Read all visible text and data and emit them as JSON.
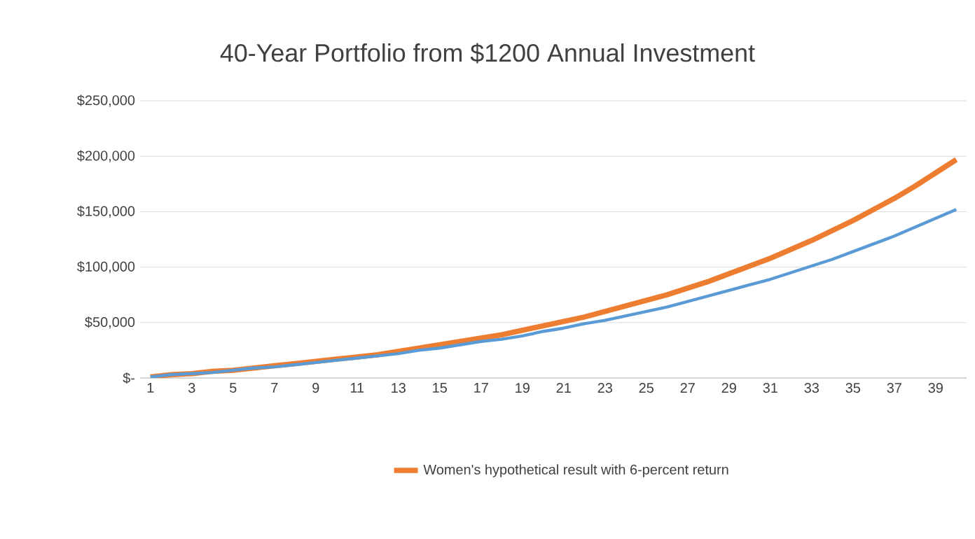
{
  "chart_data": {
    "type": "line",
    "title": "40-Year Portfolio from $1200 Annual Investment",
    "categories": [
      "1",
      null,
      "3",
      null,
      "5",
      null,
      "7",
      null,
      "9",
      null,
      "11",
      null,
      "13",
      null,
      "15",
      null,
      "17",
      null,
      "19",
      null,
      "21",
      null,
      "23",
      null,
      "25",
      null,
      "27",
      null,
      "29",
      null,
      "31",
      null,
      "33",
      null,
      "35",
      null,
      "37",
      null,
      "39",
      null
    ],
    "series": [
      {
        "name": "Women's hypothetical result with 6-percent return",
        "color": "#ed7d31",
        "values": [
          1000,
          3000,
          4000,
          6000,
          7000,
          9000,
          11000,
          13000,
          15000,
          17000,
          19000,
          21000,
          24000,
          27000,
          30000,
          33000,
          36000,
          39000,
          43000,
          47000,
          51000,
          55000,
          60000,
          65000,
          70000,
          75000,
          81000,
          87000,
          94000,
          101000,
          108000,
          116000,
          124000,
          133000,
          142000,
          152000,
          162000,
          173000,
          185000,
          197000
        ]
      },
      {
        "color": "#5b9bd5",
        "values": [
          1000,
          3000,
          4000,
          5000,
          7000,
          9000,
          10000,
          12000,
          14000,
          16000,
          18000,
          20000,
          22000,
          25000,
          27000,
          30000,
          33000,
          35000,
          38000,
          42000,
          45000,
          49000,
          52000,
          56000,
          60000,
          64000,
          69000,
          74000,
          79000,
          84000,
          89000,
          95000,
          101000,
          107000,
          114000,
          121000,
          128000,
          136000,
          144000,
          152000
        ]
      }
    ],
    "ylim": [
      0,
      250000
    ],
    "yticks": [
      {
        "value": 0,
        "label": "$-"
      },
      {
        "value": 50000,
        "label": "$50,000"
      },
      {
        "value": 100000,
        "label": "$100,000"
      },
      {
        "value": 150000,
        "label": "$150,000"
      },
      {
        "value": 200000,
        "label": "$200,000"
      },
      {
        "value": 250000,
        "label": "$250,000"
      }
    ],
    "grid": "y",
    "legend": "bottom",
    "marker": "none",
    "line_style": "solid"
  }
}
